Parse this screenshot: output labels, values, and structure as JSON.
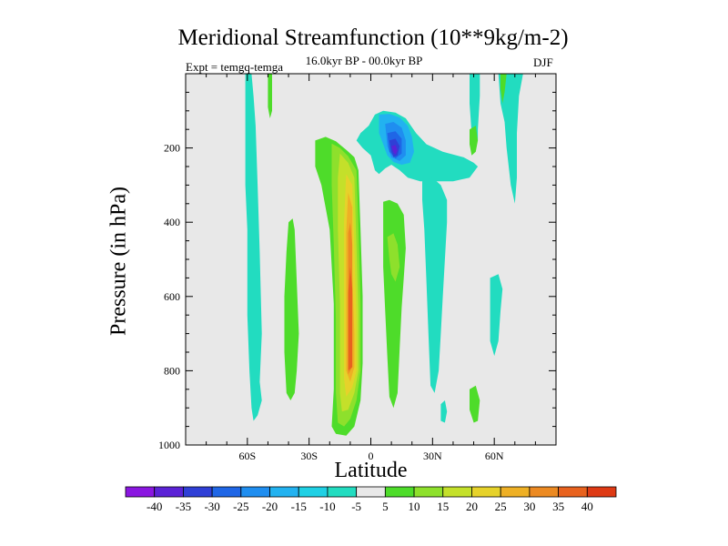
{
  "chart_data": {
    "type": "contour",
    "title": "Meridional Streamfunction (10**9kg/m-2)",
    "subtitle": "16.0kyr BP - 00.0kyr BP",
    "experiment": "Expt = temgq-temga",
    "season": "DJF",
    "xlabel": "Latitude",
    "ylabel": "Pressure (in hPa)",
    "x_range": [
      -90,
      90
    ],
    "y_range": [
      0,
      1000
    ],
    "x_ticks": [
      {
        "value": -60,
        "label": "60S"
      },
      {
        "value": -30,
        "label": "30S"
      },
      {
        "value": 0,
        "label": "0"
      },
      {
        "value": 30,
        "label": "30N"
      },
      {
        "value": 60,
        "label": "60N"
      }
    ],
    "y_ticks": [
      {
        "value": 200,
        "label": "200"
      },
      {
        "value": 400,
        "label": "400"
      },
      {
        "value": 600,
        "label": "600"
      },
      {
        "value": 800,
        "label": "800"
      },
      {
        "value": 1000,
        "label": "1000"
      }
    ],
    "levels": [
      -40,
      -35,
      -30,
      -25,
      -20,
      -15,
      -10,
      -5,
      5,
      10,
      15,
      20,
      25,
      30,
      35,
      40
    ],
    "level_labels": [
      "-40",
      "-35",
      "-30",
      "-25",
      "-20",
      "-15",
      "-10",
      "-5",
      "5",
      "10",
      "15",
      "20",
      "25",
      "30",
      "35",
      "40"
    ],
    "colors": [
      "#8a16e0",
      "#5b22d6",
      "#2f3fd6",
      "#1f66e6",
      "#1f8ef0",
      "#22b2f0",
      "#1fd0e4",
      "#22dcc0",
      "#e8e8e8",
      "#4edc2a",
      "#8ee02c",
      "#c4e02a",
      "#e6d22a",
      "#eeb025",
      "#ec8a22",
      "#e8621e",
      "#de3a14"
    ],
    "regions": [
      {
        "name": "sh-polar-cell",
        "value": -7,
        "points": [
          [
            -61,
            0
          ],
          [
            -58,
            0
          ],
          [
            -57,
            60
          ],
          [
            -56,
            140
          ],
          [
            -55,
            300
          ],
          [
            -54,
            480
          ],
          [
            -53,
            700
          ],
          [
            -54,
            830
          ],
          [
            -53,
            880
          ],
          [
            -55,
            920
          ],
          [
            -57,
            935
          ],
          [
            -58,
            900
          ],
          [
            -59,
            800
          ],
          [
            -60,
            650
          ],
          [
            -60,
            420
          ],
          [
            -61,
            300
          ],
          [
            -61,
            120
          ]
        ]
      },
      {
        "name": "sh-polar-spot",
        "value": 7,
        "points": [
          [
            -50,
            0
          ],
          [
            -48,
            0
          ],
          [
            -48,
            60
          ],
          [
            -48,
            100
          ],
          [
            -49,
            120
          ],
          [
            -50,
            90
          ]
        ]
      },
      {
        "name": "sh-ferrel-cell",
        "value": 7,
        "points": [
          [
            -40,
            400
          ],
          [
            -38,
            390
          ],
          [
            -37,
            420
          ],
          [
            -36,
            560
          ],
          [
            -35,
            700
          ],
          [
            -36,
            800
          ],
          [
            -37,
            860
          ],
          [
            -39,
            880
          ],
          [
            -41,
            860
          ],
          [
            -42,
            750
          ],
          [
            -42,
            600
          ],
          [
            -41,
            480
          ]
        ]
      },
      {
        "name": "hadley-outer-pos",
        "value": 7,
        "points": [
          [
            -27,
            180
          ],
          [
            -22,
            170
          ],
          [
            -17,
            182
          ],
          [
            -12,
            205
          ],
          [
            -8,
            225
          ],
          [
            -6,
            260
          ],
          [
            -5,
            420
          ],
          [
            -4,
            600
          ],
          [
            -4,
            780
          ],
          [
            -5,
            880
          ],
          [
            -8,
            950
          ],
          [
            -12,
            975
          ],
          [
            -17,
            970
          ],
          [
            -19,
            950
          ],
          [
            -18,
            850
          ],
          [
            -18,
            620
          ],
          [
            -20,
            420
          ],
          [
            -24,
            300
          ],
          [
            -27,
            250
          ]
        ]
      },
      {
        "name": "hadley-lvl10",
        "value": 12,
        "points": [
          [
            -19,
            188
          ],
          [
            -15,
            200
          ],
          [
            -11,
            222
          ],
          [
            -7,
            260
          ],
          [
            -6,
            420
          ],
          [
            -5,
            620
          ],
          [
            -5,
            800
          ],
          [
            -7,
            880
          ],
          [
            -10,
            930
          ],
          [
            -13,
            950
          ],
          [
            -16,
            940
          ],
          [
            -17,
            860
          ],
          [
            -17,
            660
          ],
          [
            -18,
            460
          ],
          [
            -19,
            300
          ]
        ]
      },
      {
        "name": "hadley-lvl15",
        "value": 17,
        "points": [
          [
            -15,
            215
          ],
          [
            -11,
            240
          ],
          [
            -8,
            280
          ],
          [
            -7,
            460
          ],
          [
            -6,
            640
          ],
          [
            -6,
            800
          ],
          [
            -8,
            860
          ],
          [
            -11,
            905
          ],
          [
            -14,
            910
          ],
          [
            -15,
            860
          ],
          [
            -15,
            620
          ],
          [
            -16,
            420
          ],
          [
            -16,
            280
          ]
        ]
      },
      {
        "name": "hadley-lvl20",
        "value": 22,
        "points": [
          [
            -12,
            270
          ],
          [
            -9,
            300
          ],
          [
            -8,
            470
          ],
          [
            -7,
            660
          ],
          [
            -7,
            800
          ],
          [
            -9,
            845
          ],
          [
            -12,
            870
          ],
          [
            -13,
            820
          ],
          [
            -13,
            600
          ],
          [
            -13,
            400
          ]
        ]
      },
      {
        "name": "hadley-lvl25",
        "value": 27,
        "points": [
          [
            -11,
            320
          ],
          [
            -9,
            360
          ],
          [
            -9,
            540
          ],
          [
            -8,
            700
          ],
          [
            -8,
            790
          ],
          [
            -10,
            830
          ],
          [
            -12,
            800
          ],
          [
            -12,
            620
          ],
          [
            -12,
            430
          ]
        ]
      },
      {
        "name": "hadley-lvl30",
        "value": 32,
        "points": [
          [
            -10,
            400
          ],
          [
            -9,
            460
          ],
          [
            -9,
            600
          ],
          [
            -9,
            740
          ],
          [
            -9,
            790
          ],
          [
            -11,
            810
          ],
          [
            -11,
            720
          ],
          [
            -11,
            540
          ],
          [
            -11,
            430
          ]
        ]
      },
      {
        "name": "hadley-lvl35",
        "value": 37,
        "points": [
          [
            -10,
            520
          ],
          [
            -9,
            580
          ],
          [
            -9,
            730
          ],
          [
            -9,
            790
          ],
          [
            -11,
            800
          ],
          [
            -11,
            700
          ],
          [
            -11,
            590
          ]
        ]
      },
      {
        "name": "nh-hadley-pos",
        "value": 7,
        "points": [
          [
            6,
            345
          ],
          [
            9,
            340
          ],
          [
            13,
            350
          ],
          [
            16,
            380
          ],
          [
            17,
            470
          ],
          [
            16,
            550
          ],
          [
            15,
            630
          ],
          [
            14,
            740
          ],
          [
            13,
            860
          ],
          [
            11,
            900
          ],
          [
            9,
            870
          ],
          [
            8,
            760
          ],
          [
            7,
            640
          ],
          [
            6,
            520
          ],
          [
            6,
            420
          ]
        ]
      },
      {
        "name": "nh-hadley-lvl10",
        "value": 12,
        "points": [
          [
            8,
            440
          ],
          [
            11,
            430
          ],
          [
            13,
            460
          ],
          [
            14,
            520
          ],
          [
            12,
            560
          ],
          [
            10,
            540
          ],
          [
            9,
            500
          ]
        ]
      },
      {
        "name": "nh-top-neg",
        "value": -7,
        "points": [
          [
            -1,
            140
          ],
          [
            2,
            110
          ],
          [
            6,
            100
          ],
          [
            12,
            105
          ],
          [
            17,
            120
          ],
          [
            22,
            160
          ],
          [
            27,
            190
          ],
          [
            35,
            210
          ],
          [
            45,
            225
          ],
          [
            50,
            240
          ],
          [
            52,
            250
          ],
          [
            48,
            280
          ],
          [
            40,
            290
          ],
          [
            30,
            290
          ],
          [
            24,
            290
          ],
          [
            18,
            280
          ],
          [
            14,
            260
          ],
          [
            10,
            245
          ],
          [
            7,
            255
          ],
          [
            4,
            270
          ],
          [
            2,
            260
          ],
          [
            0,
            220
          ],
          [
            -4,
            200
          ],
          [
            -7,
            180
          ],
          [
            -5,
            160
          ]
        ]
      },
      {
        "name": "nh-top-lvl15",
        "value": -17,
        "points": [
          [
            4,
            110
          ],
          [
            9,
            108
          ],
          [
            14,
            118
          ],
          [
            18,
            140
          ],
          [
            20,
            170
          ],
          [
            21,
            210
          ],
          [
            19,
            240
          ],
          [
            15,
            245
          ],
          [
            11,
            238
          ],
          [
            8,
            220
          ],
          [
            6,
            190
          ],
          [
            4,
            160
          ]
        ]
      },
      {
        "name": "nh-top-lvl20",
        "value": -22,
        "points": [
          [
            7,
            135
          ],
          [
            11,
            130
          ],
          [
            15,
            145
          ],
          [
            17,
            180
          ],
          [
            17,
            220
          ],
          [
            14,
            235
          ],
          [
            10,
            225
          ],
          [
            8,
            195
          ]
        ]
      },
      {
        "name": "nh-top-lvl25",
        "value": -27,
        "points": [
          [
            8,
            160
          ],
          [
            12,
            155
          ],
          [
            15,
            175
          ],
          [
            15,
            215
          ],
          [
            12,
            228
          ],
          [
            9,
            210
          ]
        ]
      },
      {
        "name": "nh-top-lvl30",
        "value": -32,
        "points": [
          [
            9,
            180
          ],
          [
            12,
            175
          ],
          [
            14,
            195
          ],
          [
            13,
            220
          ],
          [
            11,
            225
          ],
          [
            10,
            210
          ]
        ]
      },
      {
        "name": "nh-top-lvl35",
        "value": -37,
        "points": [
          [
            10,
            195
          ],
          [
            12,
            192
          ],
          [
            13,
            207
          ],
          [
            12,
            218
          ],
          [
            11,
            213
          ]
        ]
      },
      {
        "name": "nh-mid-neg",
        "value": -7,
        "points": [
          [
            25,
            290
          ],
          [
            30,
            280
          ],
          [
            34,
            300
          ],
          [
            37,
            340
          ],
          [
            37,
            400
          ],
          [
            36,
            500
          ],
          [
            35,
            600
          ],
          [
            34,
            700
          ],
          [
            33,
            800
          ],
          [
            31,
            860
          ],
          [
            29,
            840
          ],
          [
            28,
            700
          ],
          [
            27,
            560
          ],
          [
            26,
            420
          ],
          [
            25,
            340
          ]
        ]
      },
      {
        "name": "nh-subtrop-stripe",
        "value": -7,
        "points": [
          [
            48,
            0
          ],
          [
            53,
            0
          ],
          [
            53,
            60
          ],
          [
            52,
            150
          ],
          [
            52,
            180
          ],
          [
            50,
            200
          ],
          [
            49,
            160
          ],
          [
            48,
            80
          ]
        ]
      },
      {
        "name": "nh-polar-stripe",
        "value": -7,
        "points": [
          [
            62,
            0
          ],
          [
            74,
            0
          ],
          [
            72,
            60
          ],
          [
            71,
            160
          ],
          [
            71,
            280
          ],
          [
            70,
            350
          ],
          [
            68,
            300
          ],
          [
            66,
            200
          ],
          [
            65,
            130
          ],
          [
            63,
            80
          ]
        ]
      },
      {
        "name": "nh-polar-pos",
        "value": 7,
        "points": [
          [
            63,
            0
          ],
          [
            66,
            0
          ],
          [
            65,
            50
          ],
          [
            64,
            80
          ],
          [
            63,
            40
          ]
        ]
      },
      {
        "name": "nh-highlat-neg",
        "value": -7,
        "points": [
          [
            58,
            550
          ],
          [
            62,
            540
          ],
          [
            64,
            580
          ],
          [
            63,
            640
          ],
          [
            62,
            720
          ],
          [
            60,
            760
          ],
          [
            58,
            720
          ],
          [
            58,
            640
          ]
        ]
      },
      {
        "name": "nh-lowlevel-pos",
        "value": 7,
        "points": [
          [
            48,
            850
          ],
          [
            51,
            840
          ],
          [
            53,
            880
          ],
          [
            52,
            935
          ],
          [
            50,
            940
          ],
          [
            48,
            905
          ]
        ]
      },
      {
        "name": "nh-lowlevel-neg",
        "value": -7,
        "points": [
          [
            34,
            890
          ],
          [
            36,
            880
          ],
          [
            37,
            910
          ],
          [
            36,
            940
          ],
          [
            34,
            935
          ]
        ]
      },
      {
        "name": "nh-far-pos",
        "value": 7,
        "points": [
          [
            48,
            150
          ],
          [
            51,
            140
          ],
          [
            52,
            180
          ],
          [
            51,
            210
          ],
          [
            49,
            220
          ],
          [
            48,
            190
          ]
        ]
      }
    ]
  }
}
